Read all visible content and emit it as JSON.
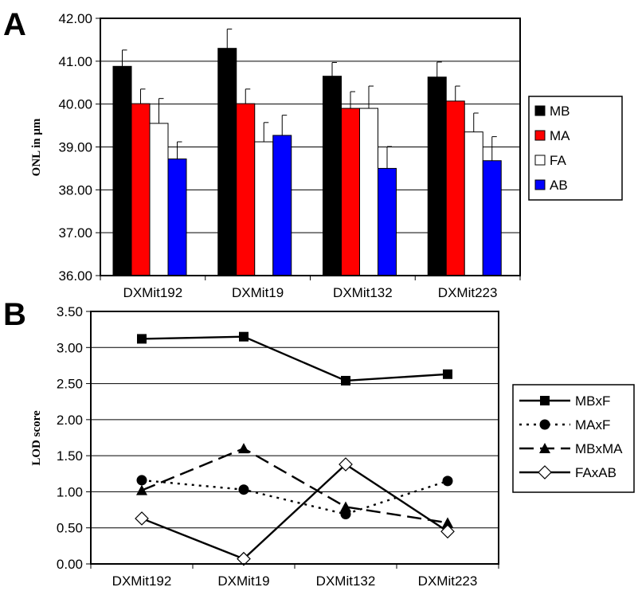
{
  "panel_a_letter": "A",
  "panel_b_letter": "B",
  "chart_data": [
    {
      "type": "bar",
      "ylabel": "ONL in μm",
      "ylim": [
        36,
        42
      ],
      "yticks": [
        "36.00",
        "37.00",
        "38.00",
        "39.00",
        "40.00",
        "41.00",
        "42.00"
      ],
      "categories": [
        "DXMit192",
        "DXMit19",
        "DXMit132",
        "DXMit223"
      ],
      "series": [
        {
          "name": "MB",
          "color": "#000000",
          "values": [
            40.88,
            41.3,
            40.65,
            40.63
          ],
          "errors": [
            0.38,
            0.45,
            0.32,
            0.35
          ]
        },
        {
          "name": "MA",
          "color": "#ff0000",
          "values": [
            40.01,
            40.01,
            39.9,
            40.07
          ],
          "errors": [
            0.34,
            0.34,
            0.39,
            0.35
          ]
        },
        {
          "name": "FA",
          "color": "#ffffff",
          "values": [
            39.55,
            39.12,
            39.9,
            39.35
          ],
          "errors": [
            0.58,
            0.45,
            0.52,
            0.44
          ]
        },
        {
          "name": "AB",
          "color": "#0000ff",
          "values": [
            38.72,
            39.27,
            38.5,
            38.68
          ],
          "errors": [
            0.4,
            0.47,
            0.51,
            0.56
          ]
        }
      ],
      "grid": true,
      "legend_position": "right"
    },
    {
      "type": "line",
      "ylabel": "LOD score",
      "ylim": [
        0,
        3.5
      ],
      "yticks": [
        "0.00",
        "0.50",
        "1.00",
        "1.50",
        "2.00",
        "2.50",
        "3.00",
        "3.50"
      ],
      "categories": [
        "DXMit192",
        "DXMit19",
        "DXMit132",
        "DXMit223"
      ],
      "series": [
        {
          "name": "MBxF",
          "marker": "square",
          "dash": "solid",
          "values": [
            3.12,
            3.15,
            2.54,
            2.63
          ]
        },
        {
          "name": "MAxF",
          "marker": "circle",
          "dash": "dotted",
          "values": [
            1.16,
            1.03,
            0.69,
            1.15
          ]
        },
        {
          "name": "MBxMA",
          "marker": "triangle",
          "dash": "dashed",
          "values": [
            1.02,
            1.6,
            0.79,
            0.57
          ]
        },
        {
          "name": "FAxAB",
          "marker": "diamond-open",
          "dash": "solid",
          "values": [
            0.63,
            0.07,
            1.38,
            0.45
          ]
        }
      ],
      "grid": true,
      "legend_position": "right"
    }
  ]
}
